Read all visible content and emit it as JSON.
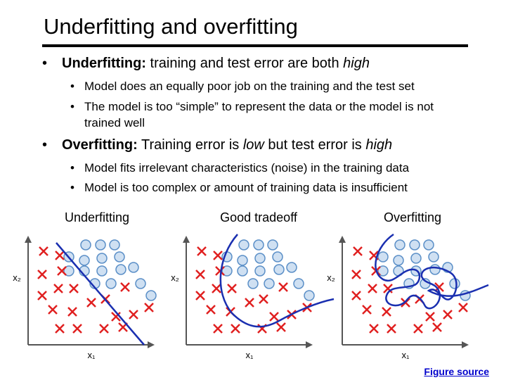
{
  "title": "Underfitting and overfitting",
  "bullets": [
    {
      "runs": [
        "Underfitting:",
        " training and test error are both ",
        "high"
      ],
      "sub": [
        "Model does an equally poor job on the training and the test set",
        "The model is too “simple” to represent the data or the model is not trained well"
      ]
    },
    {
      "runs": [
        "Overfitting:",
        " Training error is ",
        "low",
        " but test error is ",
        "high"
      ],
      "sub": [
        "Model fits irrelevant characteristics (noise) in the training data",
        "Model is too complex or amount of training data is insufficient"
      ]
    }
  ],
  "panels": [
    {
      "title": "Underfitting",
      "x_axis": "x₁",
      "y_axis": "x₂"
    },
    {
      "title": "Good tradeoff",
      "x_axis": "x₁",
      "y_axis": "x₂"
    },
    {
      "title": "Overfitting",
      "x_axis": "x₁",
      "y_axis": "x₂"
    }
  ],
  "footer": "Figure source"
}
